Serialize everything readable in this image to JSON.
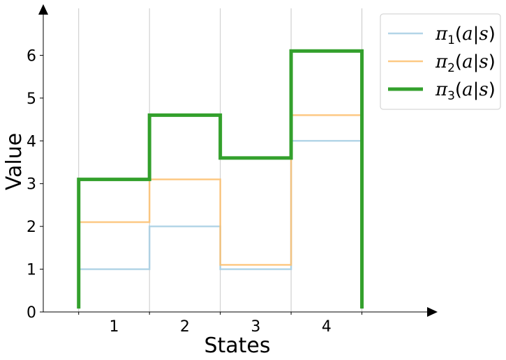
{
  "chart_data": {
    "type": "line",
    "step": true,
    "xlabel": "States",
    "ylabel": "Value",
    "categories": [
      "1",
      "2",
      "3",
      "4"
    ],
    "x_positions": [
      1,
      2,
      3,
      4
    ],
    "xlim": [
      0.0,
      5.5
    ],
    "ylim": [
      0,
      7
    ],
    "yticks": [
      0,
      1,
      2,
      3,
      4,
      5,
      6
    ],
    "vertical_guides": [
      0.5,
      1.5,
      2.5,
      3.5,
      4.5
    ],
    "grid": false,
    "legend_position": "top-right",
    "series": [
      {
        "name": "π1(a|s)",
        "values": [
          1.0,
          2.0,
          1.0,
          4.0
        ],
        "color": "#a6cee3",
        "style": "thin"
      },
      {
        "name": "π2(a|s)",
        "values": [
          2.1,
          3.1,
          1.1,
          4.6
        ],
        "color": "#fdbf6f",
        "style": "thin"
      },
      {
        "name": "π3(a|s)",
        "values": [
          3.1,
          4.6,
          3.6,
          6.1
        ],
        "color": "#33a02c",
        "style": "thick"
      }
    ]
  }
}
